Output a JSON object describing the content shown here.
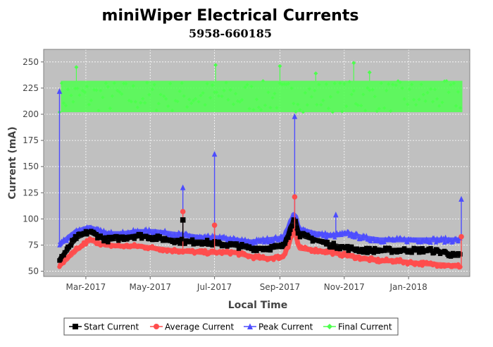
{
  "chart_data": {
    "type": "line",
    "title": "miniWiper Electrical Currents",
    "subtitle": "5958-660185",
    "xlabel": "Local Time",
    "ylabel": "Current (mA)",
    "ylim": [
      45,
      262
    ],
    "xlim": [
      "2017-01-20",
      "2018-02-28"
    ],
    "x_ticks": [
      "Mar-2017",
      "May-2017",
      "Jul-2017",
      "Sep-2017",
      "Nov-2017",
      "Jan-2018"
    ],
    "y_ticks": [
      50,
      75,
      100,
      125,
      150,
      175,
      200,
      225,
      250
    ],
    "grid": true,
    "legend_position": "bottom",
    "x": [
      "2017-02-04",
      "2017-02-20",
      "2017-03-05",
      "2017-03-20",
      "2017-04-05",
      "2017-04-20",
      "2017-05-05",
      "2017-05-20",
      "2017-06-05",
      "2017-06-20",
      "2017-07-05",
      "2017-07-20",
      "2017-08-05",
      "2017-08-20",
      "2017-09-05",
      "2017-09-15",
      "2017-09-20",
      "2017-10-05",
      "2017-10-20",
      "2017-11-05",
      "2017-11-20",
      "2017-12-05",
      "2017-12-20",
      "2018-01-05",
      "2018-01-20",
      "2018-02-05",
      "2018-02-13"
    ],
    "series": [
      {
        "name": "Start Current",
        "color": "#000000",
        "marker": "square",
        "values": [
          60,
          82,
          88,
          80,
          82,
          84,
          82,
          80,
          78,
          78,
          76,
          75,
          72,
          72,
          74,
          100,
          85,
          80,
          75,
          72,
          70,
          70,
          70,
          70,
          70,
          68,
          65
        ]
      },
      {
        "name": "Average Current",
        "color": "#ff4d4d",
        "marker": "circle",
        "values": [
          55,
          70,
          80,
          75,
          74,
          74,
          72,
          70,
          69,
          68,
          68,
          68,
          64,
          62,
          64,
          90,
          72,
          70,
          68,
          65,
          62,
          60,
          60,
          58,
          57,
          56,
          55
        ]
      },
      {
        "name": "Peak Current",
        "color": "#4d4dff",
        "marker": "triangle",
        "values": [
          75,
          88,
          92,
          86,
          86,
          88,
          88,
          86,
          84,
          82,
          82,
          80,
          78,
          80,
          82,
          105,
          90,
          86,
          84,
          86,
          82,
          80,
          80,
          80,
          80,
          80,
          80
        ]
      },
      {
        "name": "Final Current",
        "color": "#4dff4d",
        "marker": "diamond",
        "values": [
          216,
          216,
          216,
          216,
          216,
          216,
          216,
          216,
          216,
          216,
          216,
          216,
          216,
          216,
          216,
          216,
          216,
          216,
          216,
          216,
          216,
          216,
          216,
          216,
          216,
          216,
          216
        ]
      }
    ],
    "final_current_band": [
      202,
      232
    ],
    "spikes": [
      {
        "x": "2017-02-04",
        "series": "Peak Current",
        "value": 222
      },
      {
        "x": "2017-06-01",
        "series": "Peak Current",
        "value": 130
      },
      {
        "x": "2017-06-01",
        "series": "Average Current",
        "value": 107
      },
      {
        "x": "2017-06-01",
        "series": "Start Current",
        "value": 99
      },
      {
        "x": "2017-07-01",
        "series": "Peak Current",
        "value": 162
      },
      {
        "x": "2017-07-01",
        "series": "Average Current",
        "value": 94
      },
      {
        "x": "2017-09-15",
        "series": "Peak Current",
        "value": 198
      },
      {
        "x": "2017-09-15",
        "series": "Average Current",
        "value": 121
      },
      {
        "x": "2017-10-24",
        "series": "Peak Current",
        "value": 104
      },
      {
        "x": "2018-02-20",
        "series": "Peak Current",
        "value": 119
      },
      {
        "x": "2018-02-20",
        "series": "Average Current",
        "value": 83
      }
    ],
    "final_outliers": [
      {
        "x": "2017-02-20",
        "value": 245
      },
      {
        "x": "2017-07-02",
        "value": 247
      },
      {
        "x": "2017-09-01",
        "value": 246
      },
      {
        "x": "2017-10-05",
        "value": 239
      },
      {
        "x": "2017-11-10",
        "value": 249
      },
      {
        "x": "2017-11-25",
        "value": 240
      }
    ]
  },
  "legend": {
    "items": [
      {
        "label": "Start Current",
        "color": "#000000",
        "marker": "square"
      },
      {
        "label": "Average Current",
        "color": "#ff4d4d",
        "marker": "circle"
      },
      {
        "label": "Peak Current",
        "color": "#4d4dff",
        "marker": "triangle"
      },
      {
        "label": "Final Current",
        "color": "#4dff4d",
        "marker": "diamond"
      }
    ]
  },
  "colors": {
    "plot_background": "#c0c0c0",
    "grid": "#ffffff"
  }
}
